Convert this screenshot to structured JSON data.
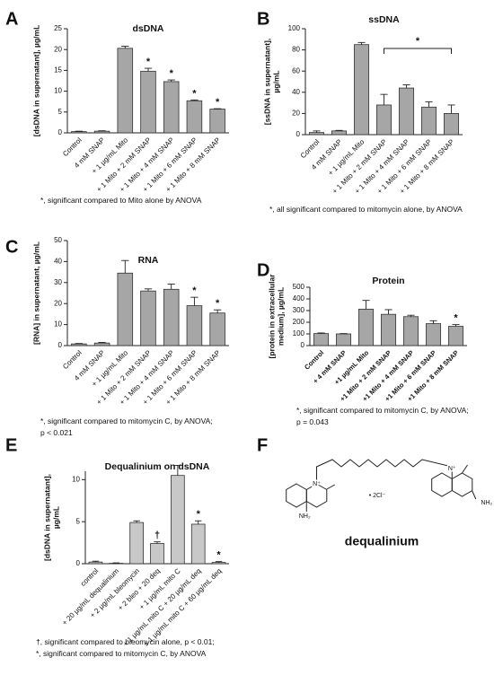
{
  "chart_data": [
    {
      "type": "bar",
      "panel": "A",
      "title": "dsDNA",
      "ylabel": [
        "[dsDNA in supernatant], µg/mL"
      ],
      "categories": [
        "Control",
        "4 mM SNAP",
        "+ 1 µg/mL Mito",
        "+ 1 Mito + 2 mM SNAP",
        "+ 1 Mito + 4 mM SNAP",
        "+ 1 Mito + 6 mM SNAP",
        "+ 1 Mito + 8 mM SNAP"
      ],
      "values": [
        0.3,
        0.4,
        20.3,
        14.8,
        12.3,
        7.7,
        5.7
      ],
      "errors": [
        0.1,
        0.1,
        0.5,
        0.7,
        0.4,
        0.2,
        0.1
      ],
      "significance": [
        null,
        null,
        null,
        "*",
        "*",
        "*",
        "*"
      ],
      "color": "#a6a6a6",
      "ylim": [
        0,
        25
      ],
      "yticks": [
        0,
        5,
        10,
        15,
        20,
        25
      ],
      "footnote": [
        "*, significant compared to Mito alone by ANOVA"
      ]
    },
    {
      "type": "bar",
      "panel": "B",
      "title": "ssDNA",
      "ylabel": [
        "[ssDNA in supernatant],",
        "µg/mL"
      ],
      "categories": [
        "Control",
        "4 mM SNAP",
        "+ 1 µg/mL Mito",
        "+ 1 Mito + 2 mM SNAP",
        "+ 1 Mito + 4 mM SNAP",
        "+ 1 Mito + 6 mM SNAP",
        "+ 1 Mito + 8 mM SNAP"
      ],
      "values": [
        2,
        3.5,
        85,
        28,
        44,
        26,
        20
      ],
      "errors": [
        1.5,
        0.5,
        2,
        10,
        3,
        5,
        8
      ],
      "bracket": {
        "label": "*",
        "start": 3,
        "end": 6
      },
      "color": "#a6a6a6",
      "ylim": [
        0,
        100
      ],
      "yticks": [
        0,
        20,
        40,
        60,
        80,
        100
      ],
      "footnote": [
        "*, all significant compared to mitomycin alone, by ANOVA"
      ]
    },
    {
      "type": "bar",
      "panel": "C",
      "title": "RNA",
      "ylabel": [
        "[RNA] in supernatant, µg/mL"
      ],
      "categories": [
        "Control",
        "4 mM SNAP",
        "+ 1 µg/mL Mito",
        "+ 1 Mito + 2 mM SNAP",
        "+ 1 Mito + 4 mM SNAP",
        "+ 1 Mito + 6 mM SNAP",
        "+ 1 Mito + 8 mM SNAP"
      ],
      "values": [
        0.8,
        1.2,
        34.5,
        26,
        26.8,
        19,
        15.5
      ],
      "errors": [
        0.2,
        0.3,
        6,
        1,
        2.5,
        4,
        1.5
      ],
      "significance": [
        null,
        null,
        null,
        null,
        null,
        "*",
        "*"
      ],
      "color": "#a6a6a6",
      "ylim": [
        0,
        50
      ],
      "yticks": [
        0,
        10,
        20,
        30,
        40,
        50
      ],
      "footnote": [
        "*, significant compared to mitomycin C, by ANOVA;",
        "p < 0.021"
      ]
    },
    {
      "type": "bar",
      "panel": "D",
      "title": "Protein",
      "ylabel": [
        "[protein in extracellular",
        "medium], µg/mL"
      ],
      "categories": [
        "Control",
        "+ 4 mM SNAP",
        "+1 µg/mL Mito",
        "+1 Mito + 2 mM SNAP",
        "+1 Mito + 4 mM SNAP",
        "+1 Mito + 6 mM SNAP",
        "+1 Mito + 8 mM SNAP"
      ],
      "values": [
        103,
        100,
        312,
        268,
        248,
        188,
        165
      ],
      "errors": [
        5,
        3,
        75,
        40,
        12,
        25,
        15
      ],
      "significance": [
        null,
        null,
        null,
        null,
        null,
        null,
        "*"
      ],
      "color": "#a6a6a6",
      "bold_labels": true,
      "ylim": [
        0,
        500
      ],
      "yticks": [
        0,
        100,
        200,
        300,
        400,
        500
      ],
      "footnote": [
        "*, significant compared to mitomycin C, by ANOVA;",
        "p = 0.043"
      ]
    },
    {
      "type": "bar",
      "panel": "E",
      "title": "Dequalinium on dsDNA",
      "ylabel": [
        "[dsDNA in supernatant],",
        "µg/mL"
      ],
      "categories": [
        "control",
        "+ 20 µg/mL dequalinium",
        "+ 2 µg/mL bleomycin",
        "+ 2 bleo + 20 deq",
        "+ 1 µg/mL mito C",
        "+ 1 µg/mL mito C + 20 µg/mL deq",
        "+ 1 µg/mL mito C + 60 µg/mL deq"
      ],
      "values": [
        0.2,
        0.05,
        4.9,
        2.4,
        10.5,
        4.7,
        0.15
      ],
      "errors": [
        0.1,
        0.05,
        0.2,
        0.2,
        1.2,
        0.4,
        0.1
      ],
      "significance": [
        null,
        null,
        null,
        "†",
        null,
        "*",
        "*"
      ],
      "color": "#c8c8c8",
      "ylim": [
        0,
        11
      ],
      "yticks": [
        0,
        5,
        10
      ],
      "footnote": [
        "†, significant compared to bleomycin alone, p < 0.01;",
        "*, significant compared to mitomycin C, by ANOVA"
      ]
    }
  ],
  "structure": {
    "panel": "F",
    "name": "dequalinium",
    "labels": [
      "N⁺",
      "NH₂",
      "• 2Cl⁻",
      "N⁺",
      "NH₂"
    ]
  }
}
